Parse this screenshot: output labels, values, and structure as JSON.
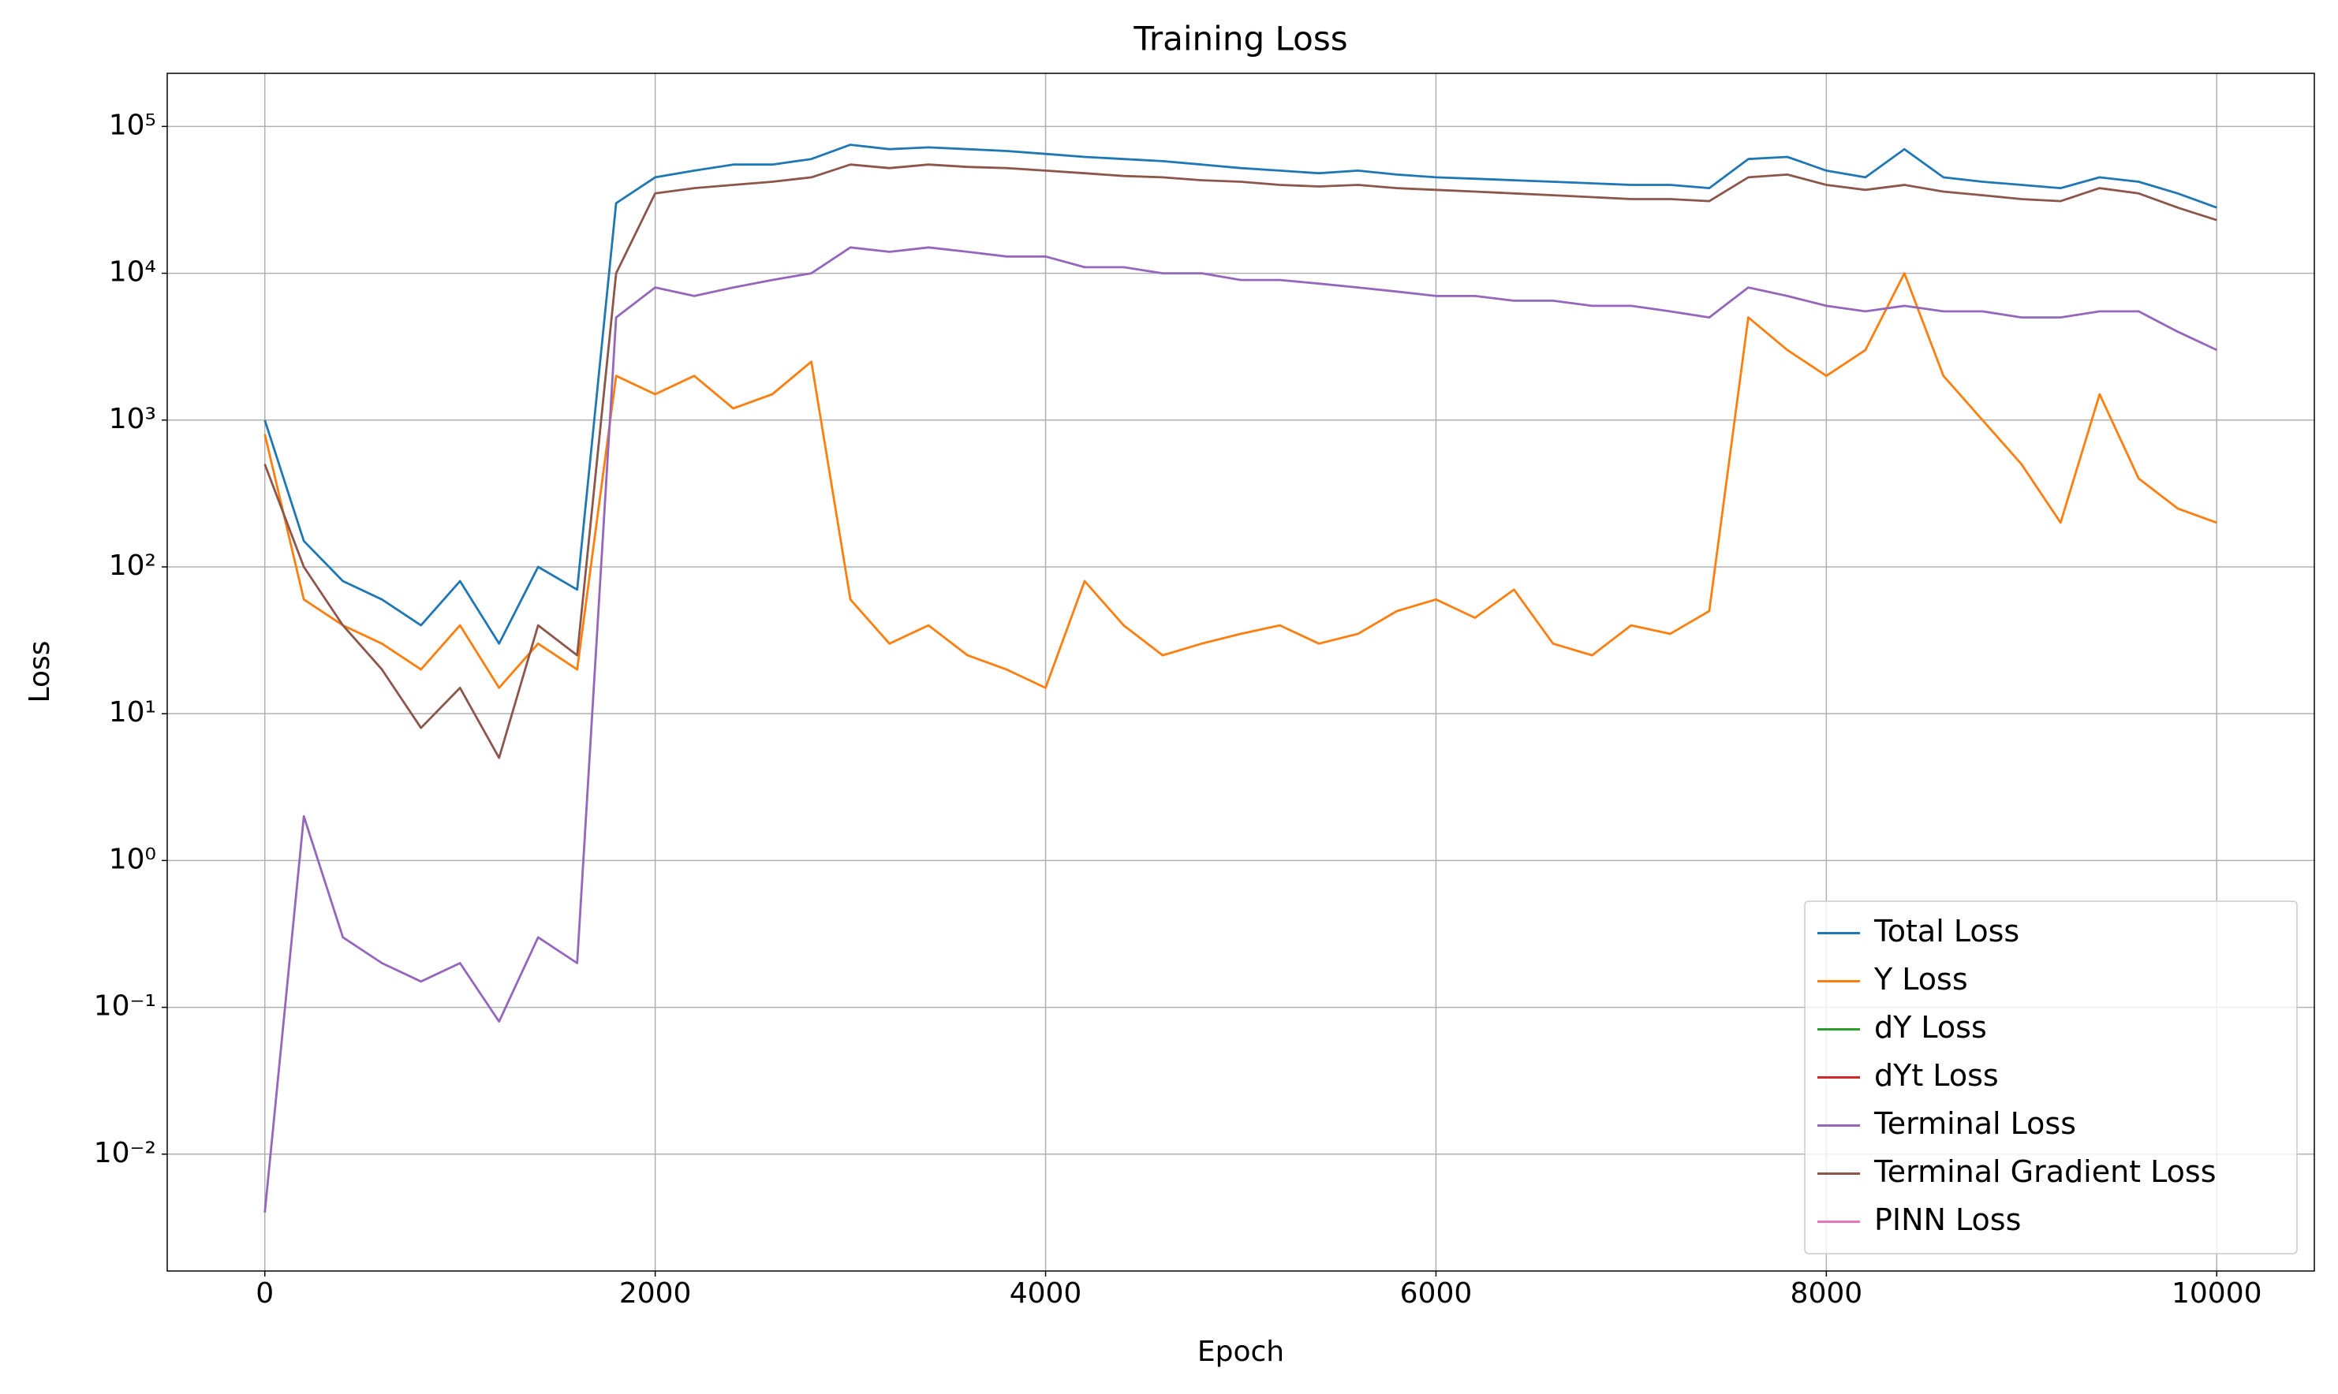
{
  "chart_data": {
    "type": "line",
    "title": "Training Loss",
    "x_label": "Epoch",
    "y_label": "Loss",
    "log_y": true,
    "grid": true,
    "legend": "lower right",
    "xlim": [
      -500,
      10500
    ],
    "xticks": [
      0,
      2000,
      4000,
      6000,
      8000,
      10000
    ],
    "ylim": [
      0.0016,
      230000
    ],
    "yticks": [
      {
        "value": 0.01,
        "label": "10⁻²"
      },
      {
        "value": 0.1,
        "label": "10⁻¹"
      },
      {
        "value": 1,
        "label": "10⁰"
      },
      {
        "value": 10,
        "label": "10¹"
      },
      {
        "value": 100,
        "label": "10²"
      },
      {
        "value": 1000,
        "label": "10³"
      },
      {
        "value": 10000,
        "label": "10⁴"
      },
      {
        "value": 100000,
        "label": "10⁵"
      }
    ],
    "x": [
      0,
      200,
      400,
      600,
      800,
      1000,
      1200,
      1400,
      1600,
      1800,
      2000,
      2200,
      2400,
      2600,
      2800,
      3000,
      3200,
      3400,
      3600,
      3800,
      4000,
      4200,
      4400,
      4600,
      4800,
      5000,
      5200,
      5400,
      5600,
      5800,
      6000,
      6200,
      6400,
      6600,
      6800,
      7000,
      7200,
      7400,
      7600,
      7800,
      8000,
      8200,
      8400,
      8600,
      8800,
      9000,
      9200,
      9400,
      9600,
      9800,
      10000
    ],
    "series": [
      {
        "name": "Total Loss",
        "color": "#1f77b4",
        "values": [
          1000,
          150,
          80,
          60,
          40,
          80,
          30,
          100,
          70,
          30000,
          45000,
          50000,
          55000,
          55000,
          60000,
          75000,
          70000,
          72000,
          70000,
          68000,
          65000,
          62000,
          60000,
          58000,
          55000,
          52000,
          50000,
          48000,
          50000,
          47000,
          45000,
          44000,
          43000,
          42000,
          41000,
          40000,
          40000,
          38000,
          60000,
          62000,
          50000,
          45000,
          70000,
          45000,
          42000,
          40000,
          38000,
          45000,
          42000,
          35000,
          28000
        ]
      },
      {
        "name": "Y Loss",
        "color": "#ff7f0e",
        "values": [
          800,
          60,
          40,
          30,
          20,
          40,
          15,
          30,
          20,
          2000,
          1500,
          2000,
          1200,
          1500,
          2500,
          60,
          30,
          40,
          25,
          20,
          15,
          80,
          40,
          25,
          30,
          35,
          40,
          30,
          35,
          50,
          60,
          45,
          70,
          30,
          25,
          40,
          35,
          50,
          5000,
          3000,
          2000,
          3000,
          10000,
          2000,
          1000,
          500,
          200,
          1500,
          400,
          250,
          200
        ]
      },
      {
        "name": "dY Loss",
        "color": "#2ca02c",
        "values": [
          null,
          null,
          null,
          null,
          null,
          null,
          null,
          null,
          null,
          null,
          null,
          null,
          null,
          null,
          null,
          null,
          null,
          null,
          null,
          null,
          null,
          null,
          null,
          null,
          null,
          null,
          null,
          null,
          null,
          null,
          null,
          null,
          null,
          null,
          null,
          null,
          null,
          null,
          null,
          null,
          null,
          null,
          null,
          null,
          null,
          null,
          null,
          null,
          null,
          null,
          null
        ]
      },
      {
        "name": "dYt Loss",
        "color": "#d62728",
        "values": [
          null,
          null,
          null,
          null,
          null,
          null,
          null,
          null,
          null,
          null,
          null,
          null,
          null,
          null,
          null,
          null,
          null,
          null,
          null,
          null,
          null,
          null,
          null,
          null,
          null,
          null,
          null,
          null,
          null,
          null,
          null,
          null,
          null,
          null,
          null,
          null,
          null,
          null,
          null,
          null,
          null,
          null,
          null,
          null,
          null,
          null,
          null,
          null,
          null,
          null,
          null
        ]
      },
      {
        "name": "Terminal Loss",
        "color": "#9467bd",
        "values": [
          0.004,
          2,
          0.3,
          0.2,
          0.15,
          0.2,
          0.08,
          0.3,
          0.2,
          5000,
          8000,
          7000,
          8000,
          9000,
          10000,
          15000,
          14000,
          15000,
          14000,
          13000,
          13000,
          11000,
          11000,
          10000,
          10000,
          9000,
          9000,
          8500,
          8000,
          7500,
          7000,
          7000,
          6500,
          6500,
          6000,
          6000,
          5500,
          5000,
          8000,
          7000,
          6000,
          5500,
          6000,
          5500,
          5500,
          5000,
          5000,
          5500,
          5500,
          4000,
          3000
        ]
      },
      {
        "name": "Terminal Gradient Loss",
        "color": "#8c564b",
        "values": [
          500,
          100,
          40,
          20,
          8,
          15,
          5,
          40,
          25,
          10000,
          35000,
          38000,
          40000,
          42000,
          45000,
          55000,
          52000,
          55000,
          53000,
          52000,
          50000,
          48000,
          46000,
          45000,
          43000,
          42000,
          40000,
          39000,
          40000,
          38000,
          37000,
          36000,
          35000,
          34000,
          33000,
          32000,
          32000,
          31000,
          45000,
          47000,
          40000,
          37000,
          40000,
          36000,
          34000,
          32000,
          31000,
          38000,
          35000,
          28000,
          23000
        ]
      },
      {
        "name": "PINN Loss",
        "color": "#e377c2",
        "values": [
          null,
          null,
          null,
          null,
          null,
          null,
          null,
          null,
          null,
          null,
          null,
          null,
          null,
          null,
          null,
          null,
          null,
          null,
          null,
          null,
          null,
          null,
          null,
          null,
          null,
          null,
          null,
          null,
          null,
          null,
          null,
          null,
          null,
          null,
          null,
          null,
          null,
          null,
          null,
          null,
          null,
          null,
          null,
          null,
          null,
          null,
          null,
          null,
          null,
          null,
          null
        ]
      }
    ]
  }
}
